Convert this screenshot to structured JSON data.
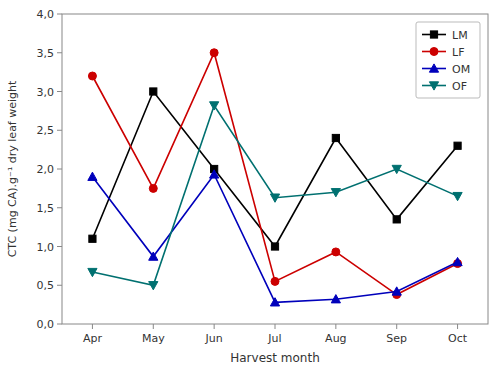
{
  "chart_data": {
    "type": "line",
    "categories": [
      "Apr",
      "May",
      "Jun",
      "Jul",
      "Aug",
      "Sep",
      "Oct"
    ],
    "series": [
      {
        "name": "LM",
        "color": "#000000",
        "marker": "square",
        "values": [
          1.1,
          3.0,
          2.0,
          1.0,
          2.4,
          1.35,
          2.3
        ]
      },
      {
        "name": "LF",
        "color": "#cc0000",
        "marker": "circle",
        "values": [
          3.2,
          1.75,
          3.5,
          0.55,
          0.93,
          0.38,
          0.78
        ]
      },
      {
        "name": "OM",
        "color": "#0000bb",
        "marker": "triangle-up",
        "values": [
          1.9,
          0.87,
          1.93,
          0.28,
          0.32,
          0.42,
          0.8
        ]
      },
      {
        "name": "OF",
        "color": "#007070",
        "marker": "triangle-down",
        "values": [
          0.67,
          0.5,
          2.82,
          1.63,
          1.7,
          2.0,
          1.65
        ]
      }
    ],
    "x_label": "Harvest month",
    "y_label": "CTC (mg CA).g⁻¹ dry leaf weight",
    "ylim": [
      0.0,
      4.0
    ],
    "yticks": [
      {
        "value": 0.0,
        "label": "0,0"
      },
      {
        "value": 0.5,
        "label": "0,5"
      },
      {
        "value": 1.0,
        "label": "1,0"
      },
      {
        "value": 1.5,
        "label": "1,5"
      },
      {
        "value": 2.0,
        "label": "2,0"
      },
      {
        "value": 2.5,
        "label": "2,5"
      },
      {
        "value": 3.0,
        "label": "3,0"
      },
      {
        "value": 3.5,
        "label": "3,5"
      },
      {
        "value": 4.0,
        "label": "4,0"
      }
    ],
    "grid": false,
    "legend": "upper right"
  }
}
